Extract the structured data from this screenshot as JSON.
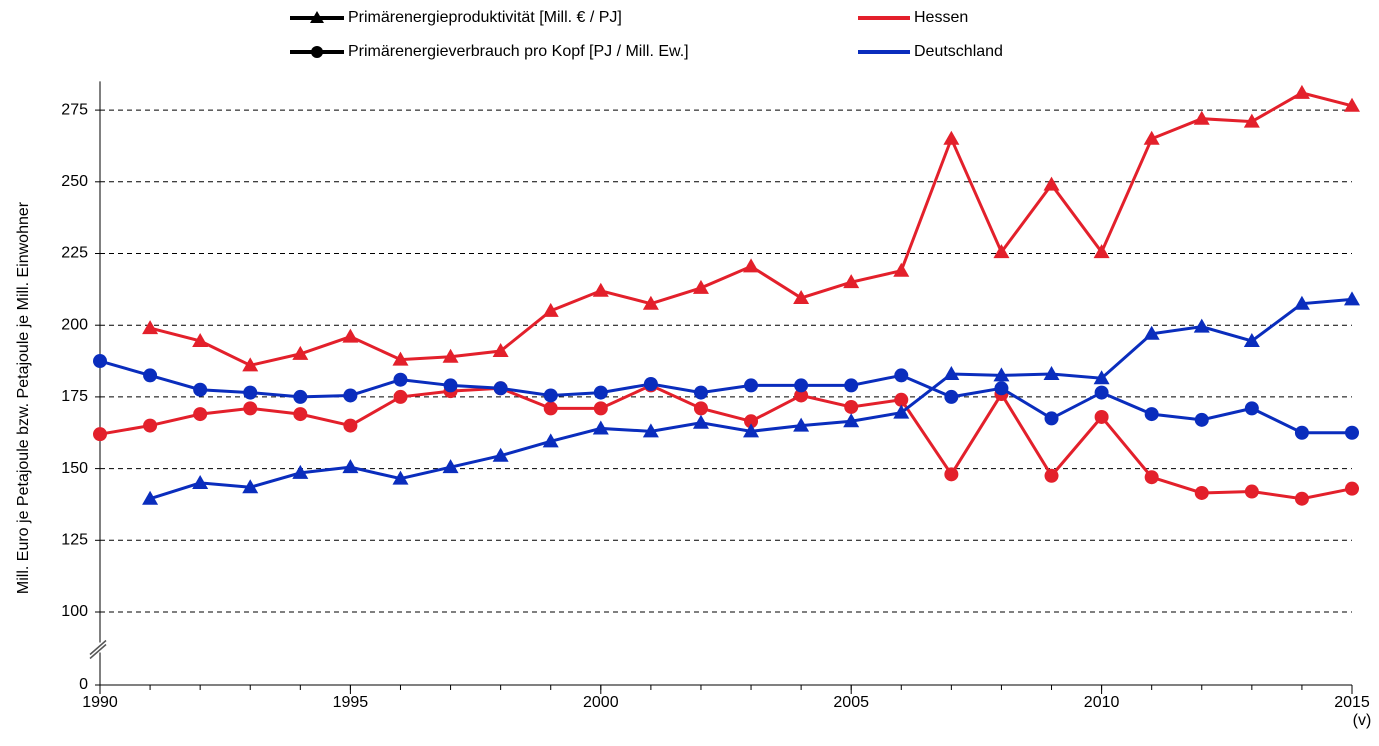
{
  "chart_data": {
    "type": "line",
    "y_label": "Mill. Euro je Petajoule bzw. Petajoule je Mill. Einwohner",
    "x": [
      1990,
      1991,
      1992,
      1993,
      1994,
      1995,
      1996,
      1997,
      1998,
      1999,
      2000,
      2001,
      2002,
      2003,
      2004,
      2005,
      2006,
      2007,
      2008,
      2009,
      2010,
      2011,
      2012,
      2013,
      2014,
      2015
    ],
    "xlim": [
      1990,
      2015
    ],
    "xticks": [
      1990,
      1995,
      2000,
      2005,
      2010,
      {
        "value": 2015,
        "label": "2015\n(v)"
      }
    ],
    "ylim": [
      0,
      285
    ],
    "axis_break": [
      0,
      100
    ],
    "yticks": [
      0,
      100,
      125,
      150,
      175,
      200,
      225,
      250,
      275
    ],
    "grid": true,
    "legend_markers": [
      {
        "name": "Primärenergieproduktivität [Mill. € / PJ]",
        "marker": "triangle"
      },
      {
        "name": "Primärenergieverbrauch pro Kopf [PJ / Mill. Ew.]",
        "marker": "circle"
      }
    ],
    "legend_colors": [
      {
        "name": "Hessen",
        "color": "#e3202b"
      },
      {
        "name": "Deutschland",
        "color": "#0a2dbd"
      }
    ],
    "series": [
      {
        "marker": "triangle",
        "color": "#e3202b",
        "values": [
          null,
          199,
          194.5,
          186,
          190,
          196,
          188,
          189,
          191,
          205,
          212,
          207.5,
          213,
          220.5,
          209.5,
          215,
          219,
          265,
          225.5,
          249,
          225.5,
          265,
          272,
          271,
          281,
          276.5
        ]
      },
      {
        "marker": "circle",
        "color": "#e3202b",
        "values": [
          162,
          165,
          169,
          171,
          169,
          165,
          175,
          177,
          178,
          171,
          171,
          179,
          171,
          166.5,
          175.5,
          171.5,
          174,
          148,
          176,
          147.5,
          168,
          147,
          141.5,
          142,
          139.5,
          143
        ]
      },
      {
        "marker": "triangle",
        "color": "#0a2dbd",
        "values": [
          null,
          139.5,
          145,
          143.5,
          148.5,
          150.5,
          146.5,
          150.5,
          154.5,
          159.5,
          164,
          163,
          166,
          163,
          165,
          166.5,
          169.5,
          183,
          182.5,
          183,
          181.5,
          197,
          199.5,
          194.5,
          207.5,
          209
        ]
      },
      {
        "marker": "circle",
        "color": "#0a2dbd",
        "values": [
          187.5,
          182.5,
          177.5,
          176.5,
          175,
          175.5,
          181,
          179,
          178,
          175.5,
          176.5,
          179.5,
          176.5,
          179,
          179,
          179,
          182.5,
          175,
          178,
          167.5,
          176.5,
          169,
          167,
          171,
          162.5,
          162.5
        ]
      }
    ]
  }
}
